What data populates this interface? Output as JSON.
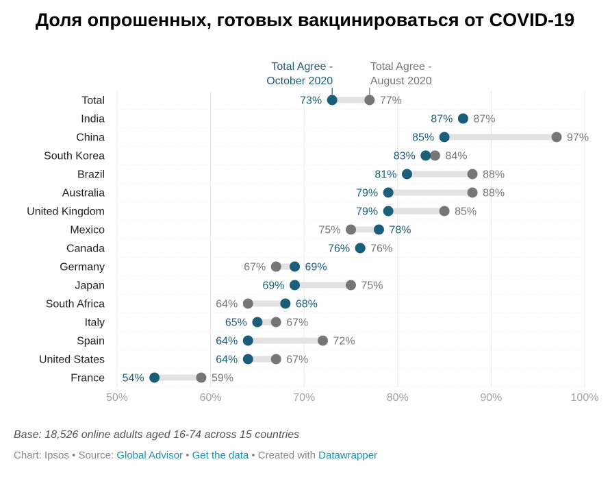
{
  "chart_data": {
    "type": "dot_range",
    "title": "Доля опрошенных, готовых вакцинироваться от COVID-19",
    "series": [
      {
        "name": "Total Agree - October 2020",
        "key": "oct",
        "color": "#1b5e7a"
      },
      {
        "name": "Total Agree - August 2020",
        "key": "aug",
        "color": "#767676"
      }
    ],
    "legend_labels": {
      "oct": [
        "Total Agree -",
        "October 2020"
      ],
      "aug": [
        "Total Agree -",
        "August 2020"
      ]
    },
    "categories": [
      "Total",
      "India",
      "China",
      "South Korea",
      "Brazil",
      "Australia",
      "United Kingdom",
      "Mexico",
      "Canada",
      "Germany",
      "Japan",
      "South Africa",
      "Italy",
      "Spain",
      "United States",
      "France"
    ],
    "oct": [
      73,
      87,
      85,
      83,
      81,
      79,
      79,
      78,
      76,
      69,
      69,
      68,
      65,
      64,
      64,
      54
    ],
    "aug": [
      77,
      87,
      97,
      84,
      88,
      88,
      85,
      75,
      76,
      67,
      75,
      64,
      67,
      72,
      67,
      59
    ],
    "oct_labels": [
      "73%",
      "87%",
      "85%",
      "83%",
      "81%",
      "79%",
      "79%",
      "78%",
      "76%",
      "69%",
      "69%",
      "68%",
      "65%",
      "64%",
      "64%",
      "54%"
    ],
    "aug_labels": [
      "77%",
      "87%",
      "97%",
      "84%",
      "88%",
      "88%",
      "85%",
      "75%",
      "76%",
      "67%",
      "75%",
      "64%",
      "67%",
      "72%",
      "67%",
      "59%"
    ],
    "x_ticks": [
      50,
      60,
      70,
      80,
      90,
      100
    ],
    "x_tick_labels": [
      "50%",
      "60%",
      "70%",
      "80%",
      "90%",
      "100%"
    ],
    "xlim": [
      50,
      100
    ],
    "grid": true
  },
  "footer": {
    "base": "Base: 18,526 online adults aged 16-74 across 15 countries",
    "chart_prefix": "Chart: Ipsos • Source: ",
    "source_link": "Global Advisor",
    "sep1": " • ",
    "data_link": "Get the data",
    "created": " • Created with ",
    "dw_link": "Datawrapper"
  }
}
